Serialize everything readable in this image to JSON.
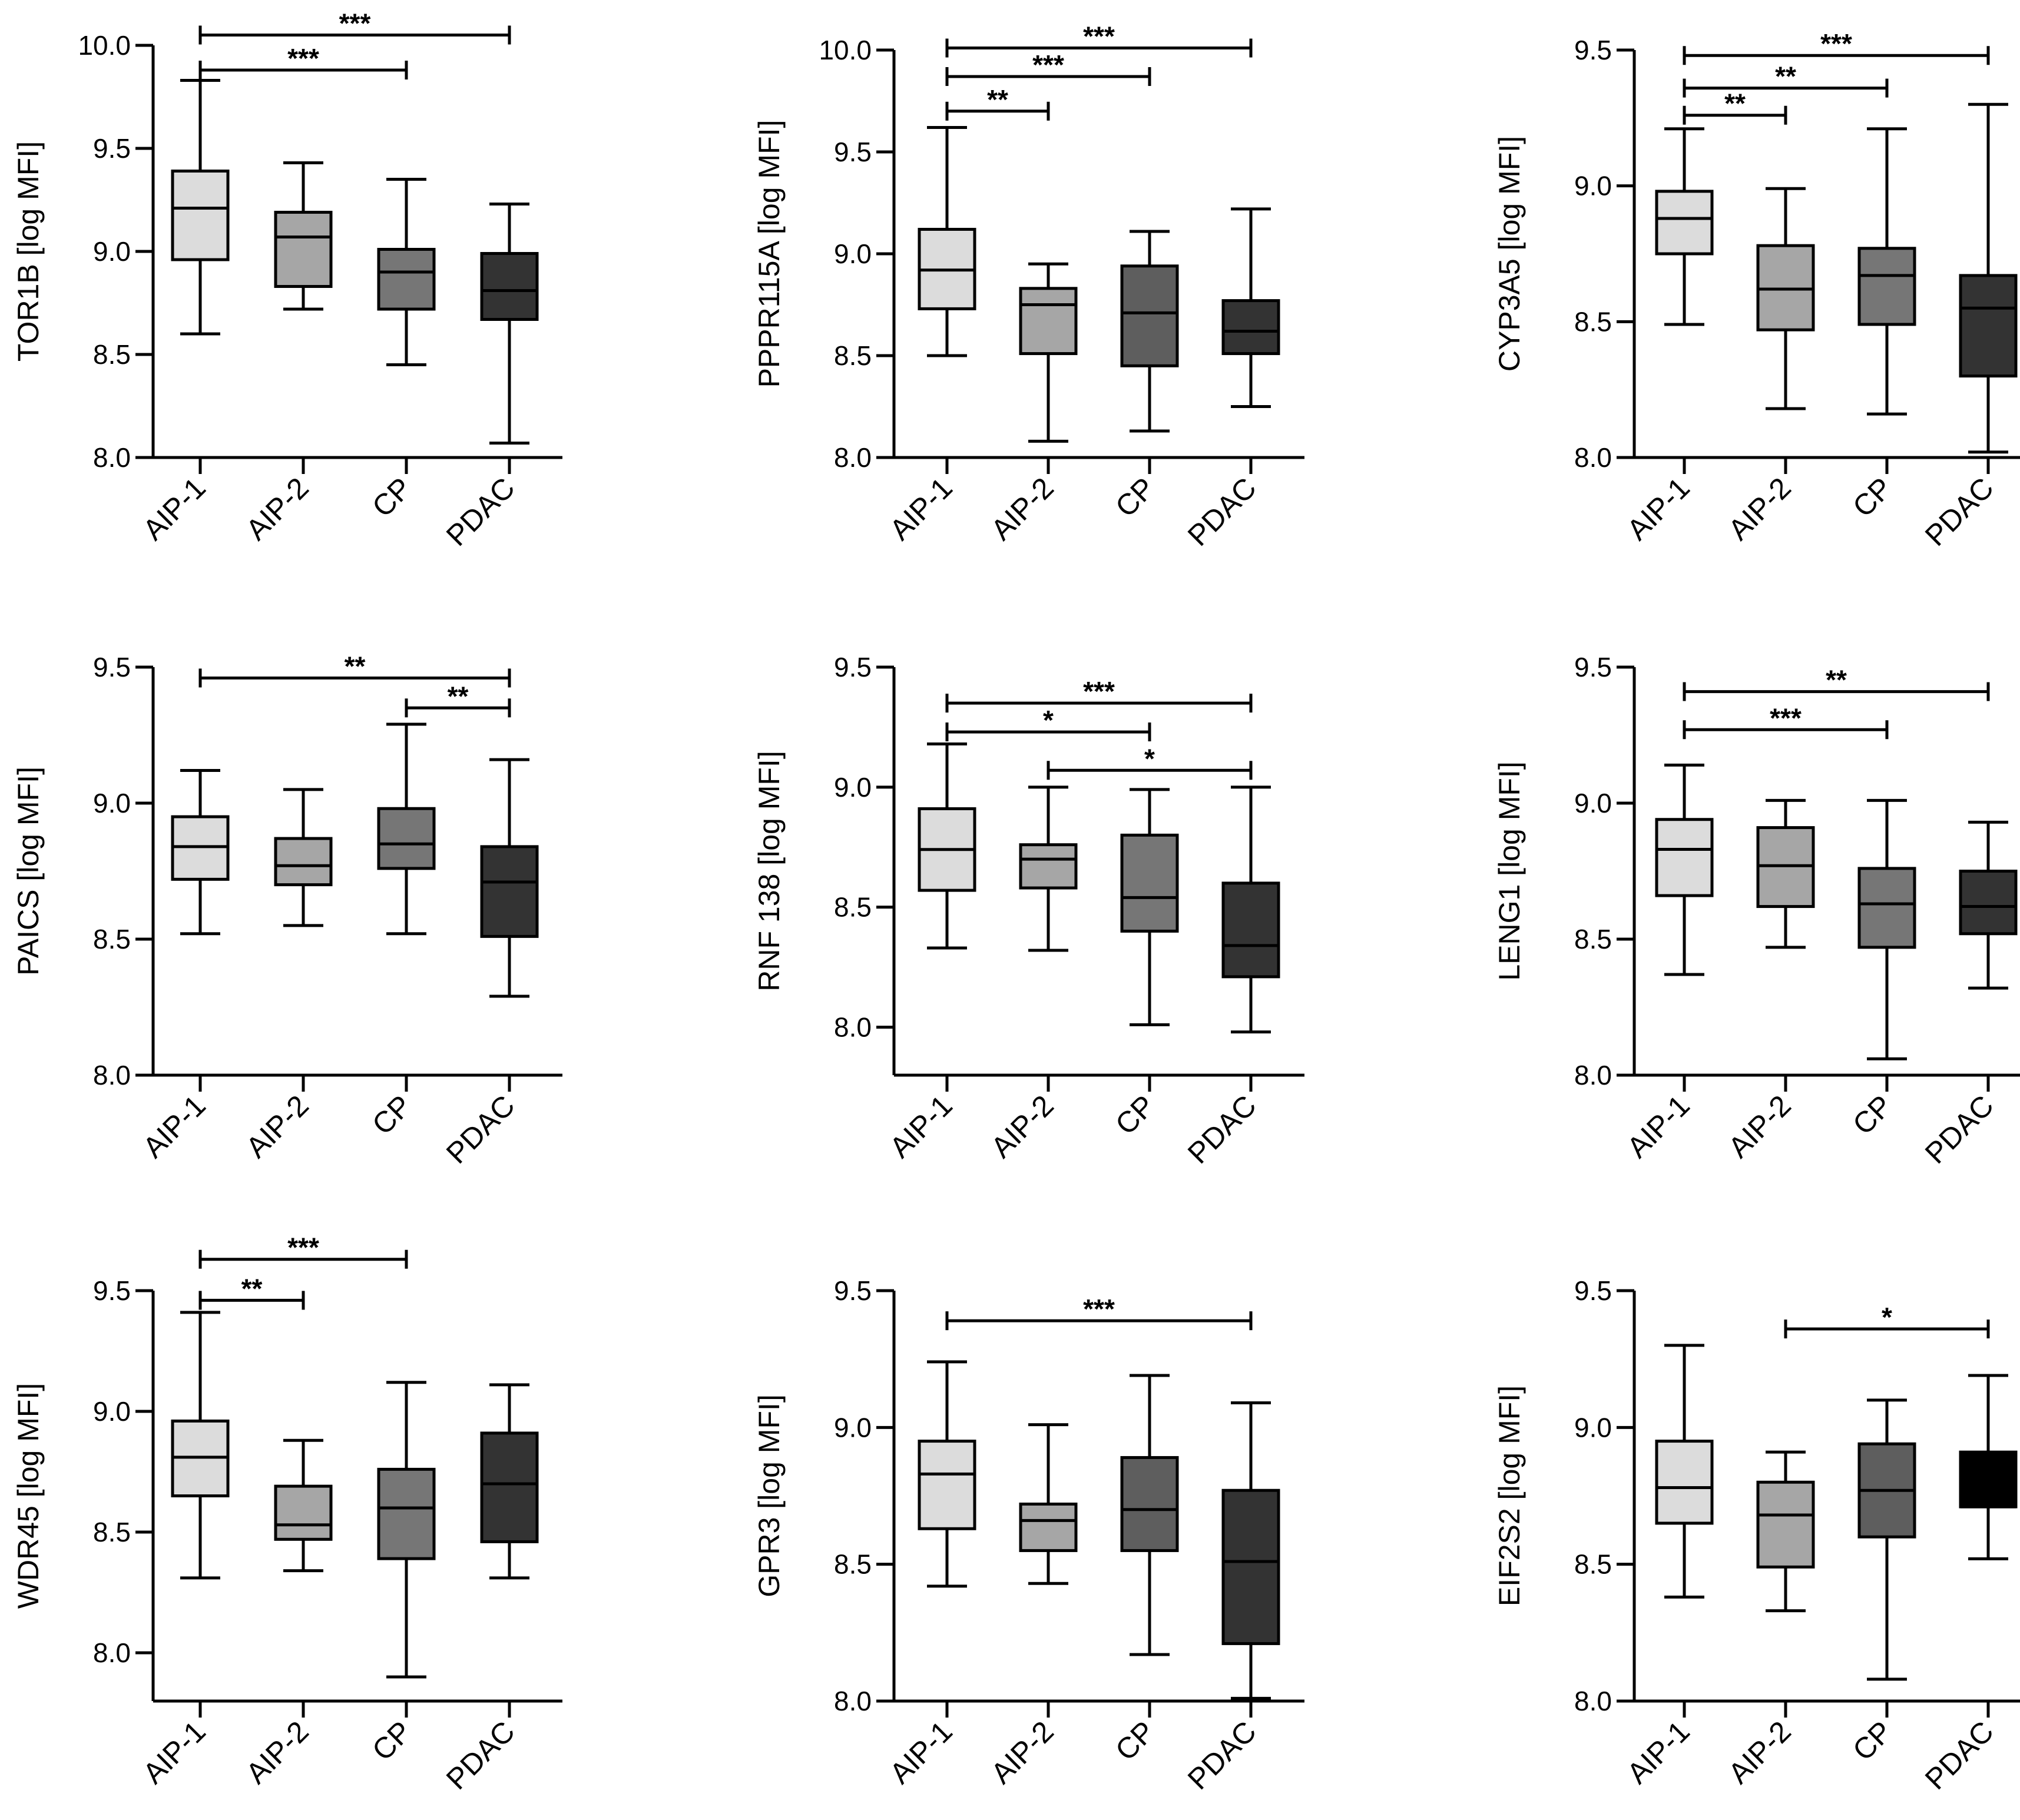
{
  "figure": {
    "background": "#ffffff",
    "ink": "#000000"
  },
  "chart_data": [
    {
      "type": "box",
      "ylabel": "TOR1B [log MFI]",
      "ylim": [
        8.0,
        10.0
      ],
      "yticks": [
        "8.0",
        "8.5",
        "9.0",
        "9.5",
        "10.0"
      ],
      "categories": [
        "AIP-1",
        "AIP-2",
        "CP",
        "PDAC"
      ],
      "boxes": [
        {
          "min": 8.6,
          "q1": 8.96,
          "median": 9.21,
          "q3": 9.39,
          "max": 9.83,
          "color": "#dcdcdc"
        },
        {
          "min": 8.72,
          "q1": 8.83,
          "median": 9.07,
          "q3": 9.19,
          "max": 9.43,
          "color": "#a6a6a6"
        },
        {
          "min": 8.45,
          "q1": 8.72,
          "median": 8.9,
          "q3": 9.01,
          "max": 9.35,
          "color": "#767676"
        },
        {
          "min": 8.07,
          "q1": 8.67,
          "median": 8.81,
          "q3": 8.99,
          "max": 9.23,
          "color": "#333333"
        }
      ],
      "significance": [
        {
          "from": 0,
          "to": 3,
          "label": "***",
          "y": 10.05
        },
        {
          "from": 0,
          "to": 2,
          "label": "***",
          "y": 9.88
        }
      ]
    },
    {
      "type": "box",
      "ylabel": "PPPR115A [log MFI]",
      "ylim": [
        8.0,
        10.0
      ],
      "yticks": [
        "8.0",
        "8.5",
        "9.0",
        "9.5",
        "10.0"
      ],
      "categories": [
        "AIP-1",
        "AIP-2",
        "CP",
        "PDAC"
      ],
      "boxes": [
        {
          "min": 8.5,
          "q1": 8.73,
          "median": 8.92,
          "q3": 9.12,
          "max": 9.62,
          "color": "#dcdcdc"
        },
        {
          "min": 8.08,
          "q1": 8.51,
          "median": 8.75,
          "q3": 8.83,
          "max": 8.95,
          "color": "#a6a6a6"
        },
        {
          "min": 8.13,
          "q1": 8.45,
          "median": 8.71,
          "q3": 8.94,
          "max": 9.11,
          "color": "#5e5e5e"
        },
        {
          "min": 8.25,
          "q1": 8.51,
          "median": 8.62,
          "q3": 8.77,
          "max": 9.22,
          "color": "#333333"
        }
      ],
      "significance": [
        {
          "from": 0,
          "to": 3,
          "label": "***",
          "y": 10.01
        },
        {
          "from": 0,
          "to": 2,
          "label": "***",
          "y": 9.87
        },
        {
          "from": 0,
          "to": 1,
          "label": "**",
          "y": 9.7
        }
      ]
    },
    {
      "type": "box",
      "ylabel": "CYP3A5 [log MFI]",
      "ylim": [
        8.0,
        9.5
      ],
      "yticks": [
        "8.0",
        "8.5",
        "9.0",
        "9.5"
      ],
      "categories": [
        "AIP-1",
        "AIP-2",
        "CP",
        "PDAC"
      ],
      "boxes": [
        {
          "min": 8.49,
          "q1": 8.75,
          "median": 8.88,
          "q3": 8.98,
          "max": 9.21,
          "color": "#dcdcdc"
        },
        {
          "min": 8.18,
          "q1": 8.47,
          "median": 8.62,
          "q3": 8.78,
          "max": 8.99,
          "color": "#a6a6a6"
        },
        {
          "min": 8.16,
          "q1": 8.49,
          "median": 8.67,
          "q3": 8.77,
          "max": 9.21,
          "color": "#767676"
        },
        {
          "min": 8.02,
          "q1": 8.3,
          "median": 8.55,
          "q3": 8.67,
          "max": 9.3,
          "color": "#333333"
        }
      ],
      "significance": [
        {
          "from": 0,
          "to": 3,
          "label": "***",
          "y": 9.48
        },
        {
          "from": 0,
          "to": 2,
          "label": "**",
          "y": 9.36
        },
        {
          "from": 0,
          "to": 1,
          "label": "**",
          "y": 9.26
        }
      ]
    },
    {
      "type": "box",
      "ylabel": "PAICS [log MFI]",
      "ylim": [
        8.0,
        9.5
      ],
      "yticks": [
        "8.0",
        "8.5",
        "9.0",
        "9.5"
      ],
      "categories": [
        "AIP-1",
        "AIP-2",
        "CP",
        "PDAC"
      ],
      "boxes": [
        {
          "min": 8.52,
          "q1": 8.72,
          "median": 8.84,
          "q3": 8.95,
          "max": 9.12,
          "color": "#dcdcdc"
        },
        {
          "min": 8.55,
          "q1": 8.7,
          "median": 8.77,
          "q3": 8.87,
          "max": 9.05,
          "color": "#a6a6a6"
        },
        {
          "min": 8.52,
          "q1": 8.76,
          "median": 8.85,
          "q3": 8.98,
          "max": 9.29,
          "color": "#767676"
        },
        {
          "min": 8.29,
          "q1": 8.51,
          "median": 8.71,
          "q3": 8.84,
          "max": 9.16,
          "color": "#333333"
        }
      ],
      "significance": [
        {
          "from": 0,
          "to": 3,
          "label": "**",
          "y": 9.46
        },
        {
          "from": 2,
          "to": 3,
          "label": "**",
          "y": 9.35
        }
      ]
    },
    {
      "type": "box",
      "ylabel": "RNF 138 [log MFI]",
      "ylim": [
        7.8,
        9.5
      ],
      "yticks": [
        "8.0",
        "8.5",
        "9.0",
        "9.5"
      ],
      "categories": [
        "AIP-1",
        "AIP-2",
        "CP",
        "PDAC"
      ],
      "boxes": [
        {
          "min": 8.33,
          "q1": 8.57,
          "median": 8.74,
          "q3": 8.91,
          "max": 9.18,
          "color": "#dcdcdc"
        },
        {
          "min": 8.32,
          "q1": 8.58,
          "median": 8.7,
          "q3": 8.76,
          "max": 9.0,
          "color": "#a6a6a6"
        },
        {
          "min": 8.01,
          "q1": 8.4,
          "median": 8.54,
          "q3": 8.8,
          "max": 8.99,
          "color": "#767676"
        },
        {
          "min": 7.98,
          "q1": 8.21,
          "median": 8.34,
          "q3": 8.6,
          "max": 9.0,
          "color": "#333333"
        }
      ],
      "significance": [
        {
          "from": 0,
          "to": 3,
          "label": "***",
          "y": 9.35
        },
        {
          "from": 0,
          "to": 2,
          "label": "*",
          "y": 9.23
        },
        {
          "from": 1,
          "to": 3,
          "label": "*",
          "y": 9.07
        }
      ]
    },
    {
      "type": "box",
      "ylabel": "LENG1 [log MFI]",
      "ylim": [
        8.0,
        9.5
      ],
      "yticks": [
        "8.0",
        "8.5",
        "9.0",
        "9.5"
      ],
      "categories": [
        "AIP-1",
        "AIP-2",
        "CP",
        "PDAC"
      ],
      "boxes": [
        {
          "min": 8.37,
          "q1": 8.66,
          "median": 8.83,
          "q3": 8.94,
          "max": 9.14,
          "color": "#dcdcdc"
        },
        {
          "min": 8.47,
          "q1": 8.62,
          "median": 8.77,
          "q3": 8.91,
          "max": 9.01,
          "color": "#a6a6a6"
        },
        {
          "min": 8.06,
          "q1": 8.47,
          "median": 8.63,
          "q3": 8.76,
          "max": 9.01,
          "color": "#767676"
        },
        {
          "min": 8.32,
          "q1": 8.52,
          "median": 8.62,
          "q3": 8.75,
          "max": 8.93,
          "color": "#333333"
        }
      ],
      "significance": [
        {
          "from": 0,
          "to": 3,
          "label": "**",
          "y": 9.41
        },
        {
          "from": 0,
          "to": 2,
          "label": "***",
          "y": 9.27
        }
      ]
    },
    {
      "type": "box",
      "ylabel": "WDR45 [log MFI]",
      "ylim": [
        7.8,
        9.5
      ],
      "yticks": [
        "8.0",
        "8.5",
        "9.0",
        "9.5"
      ],
      "categories": [
        "AIP-1",
        "AIP-2",
        "CP",
        "PDAC"
      ],
      "boxes": [
        {
          "min": 8.31,
          "q1": 8.65,
          "median": 8.81,
          "q3": 8.96,
          "max": 9.41,
          "color": "#dcdcdc"
        },
        {
          "min": 8.34,
          "q1": 8.47,
          "median": 8.53,
          "q3": 8.69,
          "max": 8.88,
          "color": "#a6a6a6"
        },
        {
          "min": 7.9,
          "q1": 8.39,
          "median": 8.6,
          "q3": 8.76,
          "max": 9.12,
          "color": "#767676"
        },
        {
          "min": 8.31,
          "q1": 8.46,
          "median": 8.7,
          "q3": 8.91,
          "max": 9.11,
          "color": "#333333"
        }
      ],
      "significance": [
        {
          "from": 0,
          "to": 2,
          "label": "***",
          "y": 9.63
        },
        {
          "from": 0,
          "to": 1,
          "label": "**",
          "y": 9.46
        }
      ]
    },
    {
      "type": "box",
      "ylabel": "GPR3 [log MFI]",
      "ylim": [
        8.0,
        9.5
      ],
      "yticks": [
        "8.0",
        "8.5",
        "9.0",
        "9.5"
      ],
      "categories": [
        "AIP-1",
        "AIP-2",
        "CP",
        "PDAC"
      ],
      "boxes": [
        {
          "min": 8.42,
          "q1": 8.63,
          "median": 8.83,
          "q3": 8.95,
          "max": 9.24,
          "color": "#dcdcdc"
        },
        {
          "min": 8.43,
          "q1": 8.55,
          "median": 8.66,
          "q3": 8.72,
          "max": 9.01,
          "color": "#a6a6a6"
        },
        {
          "min": 8.17,
          "q1": 8.55,
          "median": 8.7,
          "q3": 8.89,
          "max": 9.19,
          "color": "#5e5e5e"
        },
        {
          "min": 8.01,
          "q1": 8.21,
          "median": 8.51,
          "q3": 8.77,
          "max": 9.09,
          "color": "#333333"
        }
      ],
      "significance": [
        {
          "from": 0,
          "to": 3,
          "label": "***",
          "y": 9.39
        }
      ]
    },
    {
      "type": "box",
      "ylabel": "EIF2S2 [log MFI]",
      "ylim": [
        8.0,
        9.5
      ],
      "yticks": [
        "8.0",
        "8.5",
        "9.0",
        "9.5"
      ],
      "categories": [
        "AIP-1",
        "AIP-2",
        "CP",
        "PDAC"
      ],
      "boxes": [
        {
          "min": 8.38,
          "q1": 8.65,
          "median": 8.78,
          "q3": 8.95,
          "max": 9.3,
          "color": "#dcdcdc"
        },
        {
          "min": 8.33,
          "q1": 8.49,
          "median": 8.68,
          "q3": 8.8,
          "max": 8.91,
          "color": "#a6a6a6"
        },
        {
          "min": 8.08,
          "q1": 8.6,
          "median": 8.77,
          "q3": 8.94,
          "max": 9.1,
          "color": "#5e5e5e"
        },
        {
          "min": 8.52,
          "q1": 8.71,
          "median": 8.71,
          "q3": 8.91,
          "max": 9.19,
          "color": "#000000"
        }
      ],
      "significance": [
        {
          "from": 1,
          "to": 3,
          "label": "*",
          "y": 9.36
        }
      ]
    }
  ]
}
